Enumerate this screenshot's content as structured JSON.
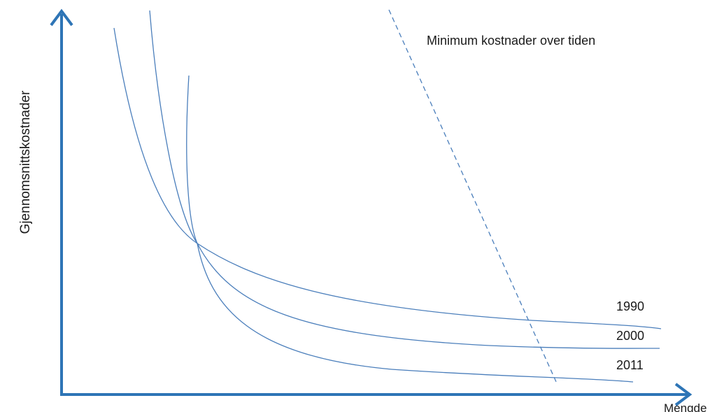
{
  "diagram": {
    "y_axis_label": "Gjennomsnittskostnader",
    "x_axis_label": "Mengde",
    "min_cost_label": "Minimum kostnader over tiden",
    "curves": [
      {
        "label": "1990"
      },
      {
        "label": "2000"
      },
      {
        "label": "2011"
      }
    ],
    "colors": {
      "axis": "#2e75b6",
      "curve": "#4a7ebb",
      "text": "#1a1a1a"
    }
  }
}
